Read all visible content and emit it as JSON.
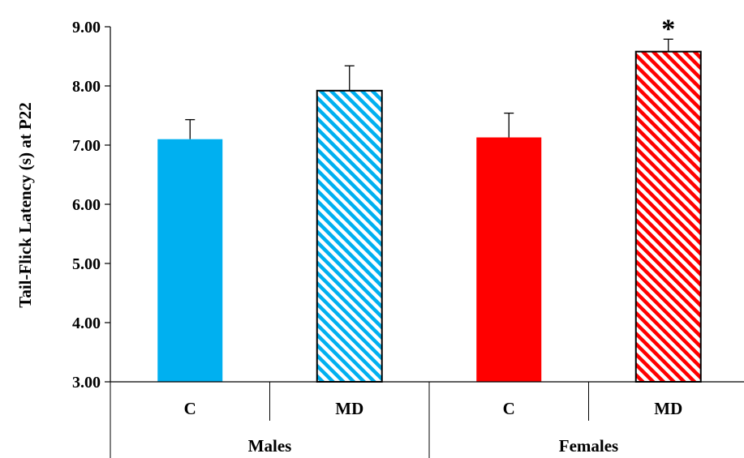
{
  "chart_data": {
    "type": "bar",
    "ylabel": "Tail-Flick Latency (s) at P22",
    "ylim": [
      3.0,
      9.0
    ],
    "yticks": [
      "3.00",
      "4.00",
      "5.00",
      "6.00",
      "7.00",
      "8.00",
      "9.00"
    ],
    "groups": [
      {
        "label": "Males",
        "categories": [
          "C",
          "MD"
        ]
      },
      {
        "label": "Females",
        "categories": [
          "C",
          "MD"
        ]
      }
    ],
    "bars": [
      {
        "group": "Males",
        "category": "C",
        "value": 7.1,
        "error": 0.33,
        "color": "#00B0F0",
        "pattern": "solid",
        "annotation": ""
      },
      {
        "group": "Males",
        "category": "MD",
        "value": 7.92,
        "error": 0.42,
        "color": "#00B0F0",
        "pattern": "hatched",
        "annotation": ""
      },
      {
        "group": "Females",
        "category": "C",
        "value": 7.13,
        "error": 0.41,
        "color": "#FF0000",
        "pattern": "solid",
        "annotation": ""
      },
      {
        "group": "Females",
        "category": "MD",
        "value": 8.58,
        "error": 0.21,
        "color": "#FF0000",
        "pattern": "hatched",
        "annotation": "*"
      }
    ]
  }
}
